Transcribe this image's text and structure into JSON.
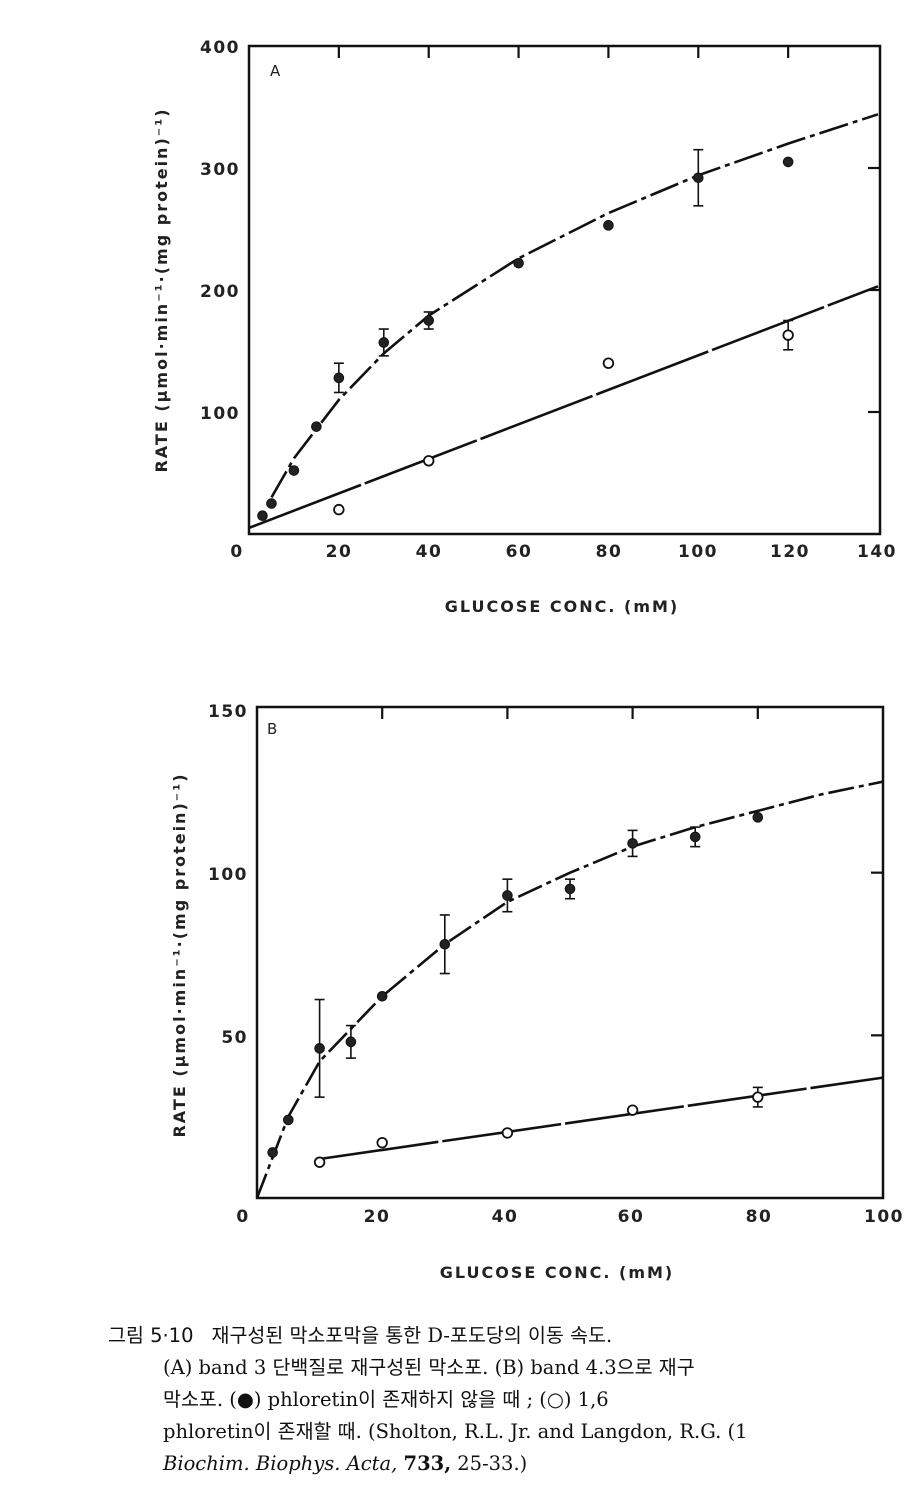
{
  "chart_data": [
    {
      "type": "scatter",
      "panel_label": "A",
      "xlabel": "GLUCOSE CONC. (mM)",
      "ylabel": "RATE (μmol·min⁻¹·(mg protein)⁻¹)",
      "xlim": [
        0,
        140
      ],
      "ylim": [
        0,
        400
      ],
      "xticks": [
        0,
        20,
        40,
        60,
        80,
        100,
        120,
        140
      ],
      "yticks": [
        100,
        200,
        300,
        400
      ],
      "xtick_labels": [
        "0",
        "20",
        "40",
        "60",
        "80",
        "100",
        "120",
        "140"
      ],
      "ytick_labels": [
        "100",
        "200",
        "300",
        "400"
      ],
      "series": [
        {
          "name": "phloretin absent (●)",
          "marker": "filled",
          "x": [
            3,
            5,
            10,
            15,
            20,
            30,
            40,
            60,
            80,
            100,
            120
          ],
          "y": [
            15,
            25,
            52,
            88,
            128,
            157,
            175,
            222,
            253,
            292,
            305
          ],
          "error": [
            0,
            0,
            0,
            0,
            12,
            11,
            7,
            0,
            0,
            23,
            0
          ],
          "fit": {
            "type": "curve",
            "x": [
              5,
              10,
              20,
              30,
              40,
              60,
              80,
              100,
              120,
              140
            ],
            "y": [
              30,
              62,
              110,
              148,
              179,
              226,
              263,
              294,
              320,
              344
            ]
          }
        },
        {
          "name": "1,6 phloretin present (○)",
          "marker": "open",
          "x": [
            20,
            40,
            80,
            120
          ],
          "y": [
            20,
            60,
            140,
            163
          ],
          "error": [
            0,
            0,
            0,
            12
          ],
          "fit": {
            "type": "line",
            "x": [
              0,
              140
            ],
            "y": [
              5,
              203
            ]
          }
        }
      ]
    },
    {
      "type": "scatter",
      "panel_label": "B",
      "xlabel": "GLUCOSE CONC. (mM)",
      "ylabel": "RATE (μmol·min⁻¹·(mg protein)⁻¹)",
      "xlim": [
        0,
        100
      ],
      "ylim": [
        0,
        150
      ],
      "xticks": [
        0,
        20,
        40,
        60,
        80,
        100
      ],
      "yticks": [
        50,
        100,
        150
      ],
      "xtick_labels": [
        "0",
        "20",
        "40",
        "60",
        "80",
        "100"
      ],
      "ytick_labels": [
        "50",
        "100",
        "150"
      ],
      "series": [
        {
          "name": "phloretin absent (●)",
          "marker": "filled",
          "x": [
            2.5,
            5,
            10,
            15,
            20,
            30,
            40,
            50,
            60,
            70,
            80
          ],
          "y": [
            14,
            24,
            46,
            48,
            62,
            78,
            93,
            95,
            109,
            111,
            117
          ],
          "error": [
            0,
            0,
            15,
            5,
            0,
            9,
            5,
            3,
            4,
            3,
            0
          ],
          "fit": {
            "type": "curve",
            "x": [
              0,
              2,
              5,
              10,
              20,
              30,
              40,
              50,
              60,
              70,
              80,
              90,
              100
            ],
            "y": [
              0,
              10,
              25,
              42,
              62,
              78,
              91,
              100,
              108,
              114,
              119,
              124,
              128
            ]
          }
        },
        {
          "name": "1,6 phloretin present (○)",
          "marker": "open",
          "x": [
            10,
            20,
            40,
            60,
            80
          ],
          "y": [
            11,
            17,
            20,
            27,
            31
          ],
          "error": [
            0,
            0,
            0,
            0,
            3
          ],
          "fit": {
            "type": "line",
            "x": [
              10,
              100
            ],
            "y": [
              12,
              37
            ]
          }
        }
      ]
    }
  ],
  "caption": {
    "figure_number": "그림 5·10",
    "title": "재구성된 막소포막을 통한 D-포도당의 이동 속도.",
    "line2": "(A) band 3 단백질로 재구성된 막소포. (B) band 4.3으로 재구",
    "line3": "막소포. (●) phloretin이 존재하지 않을 때 ; (○) 1,6",
    "line4": "phloretin이 존재할 때. (Sholton, R.L. Jr. and Langdon, R.G. (1",
    "journal": "Biochim. Biophys. Acta,",
    "volume": "733,",
    "pages": "25-33.)"
  }
}
